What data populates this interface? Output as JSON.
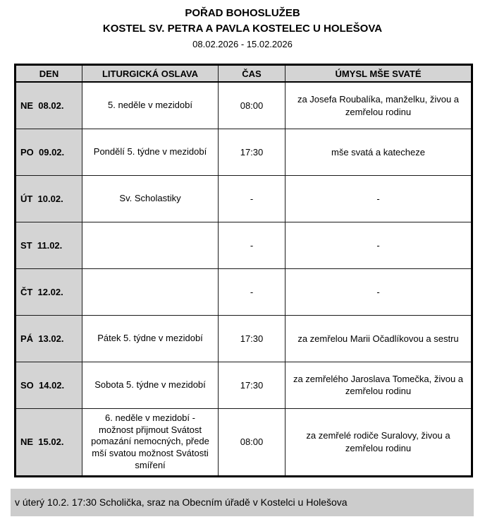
{
  "title": {
    "line1": "POŘAD BOHOSLUŽEB",
    "line2": "KOSTEL SV. PETRA A PAVLA KOSTELEC U HOLEŠOVA",
    "line3": "08.02.2026 - 15.02.2026"
  },
  "table": {
    "headers": [
      "DEN",
      "LITURGICKÁ OSLAVA",
      "ČAS",
      "ÚMYSL MŠE SVATÉ"
    ],
    "rows": [
      {
        "den": "NE  08.02.",
        "oslava": "5. neděle v mezidobí",
        "cas": "08:00",
        "umysl": "za Josefa Roubalíka, manželku, živou a zemřelou rodinu",
        "tall": false
      },
      {
        "den": "PO  09.02.",
        "oslava": "Pondělí 5. týdne v mezidobí",
        "cas": "17:30",
        "umysl": "mše svatá a katecheze",
        "tall": false
      },
      {
        "den": "ÚT  10.02.",
        "oslava": "Sv. Scholastiky",
        "cas": "-",
        "umysl": "-",
        "tall": false
      },
      {
        "den": "ST  11.02.",
        "oslava": "",
        "cas": "-",
        "umysl": "-",
        "tall": false
      },
      {
        "den": "ČT  12.02.",
        "oslava": "",
        "cas": "-",
        "umysl": "-",
        "tall": false
      },
      {
        "den": "PÁ  13.02.",
        "oslava": "Pátek 5. týdne v mezidobí",
        "cas": "17:30",
        "umysl": "za zemřelou Marii Očadlíkovou a sestru",
        "tall": false
      },
      {
        "den": "SO  14.02.",
        "oslava": "Sobota 5. týdne v mezidobí",
        "cas": "17:30",
        "umysl": "za zemřelého Jaroslava Tomečka, živou a zemřelou rodinu",
        "tall": false
      },
      {
        "den": "NE  15.02.",
        "oslava": "6. neděle v mezidobí - možnost přijmout Svátost pomazání nemocných, přede mší svatou možnost Svátosti smíření",
        "cas": "08:00",
        "umysl": "za zemřelé rodiče Suralovy, živou a zemřelou rodinu",
        "tall": true
      }
    ]
  },
  "footer": {
    "note": "v úterý 10.2. 17:30 Scholička, sraz na Obecním úřadě v Kostelci u Holešova"
  },
  "colors": {
    "cell_gray": "#d4d4d4",
    "footer_gray": "#cccccc",
    "border_black": "#000000"
  }
}
